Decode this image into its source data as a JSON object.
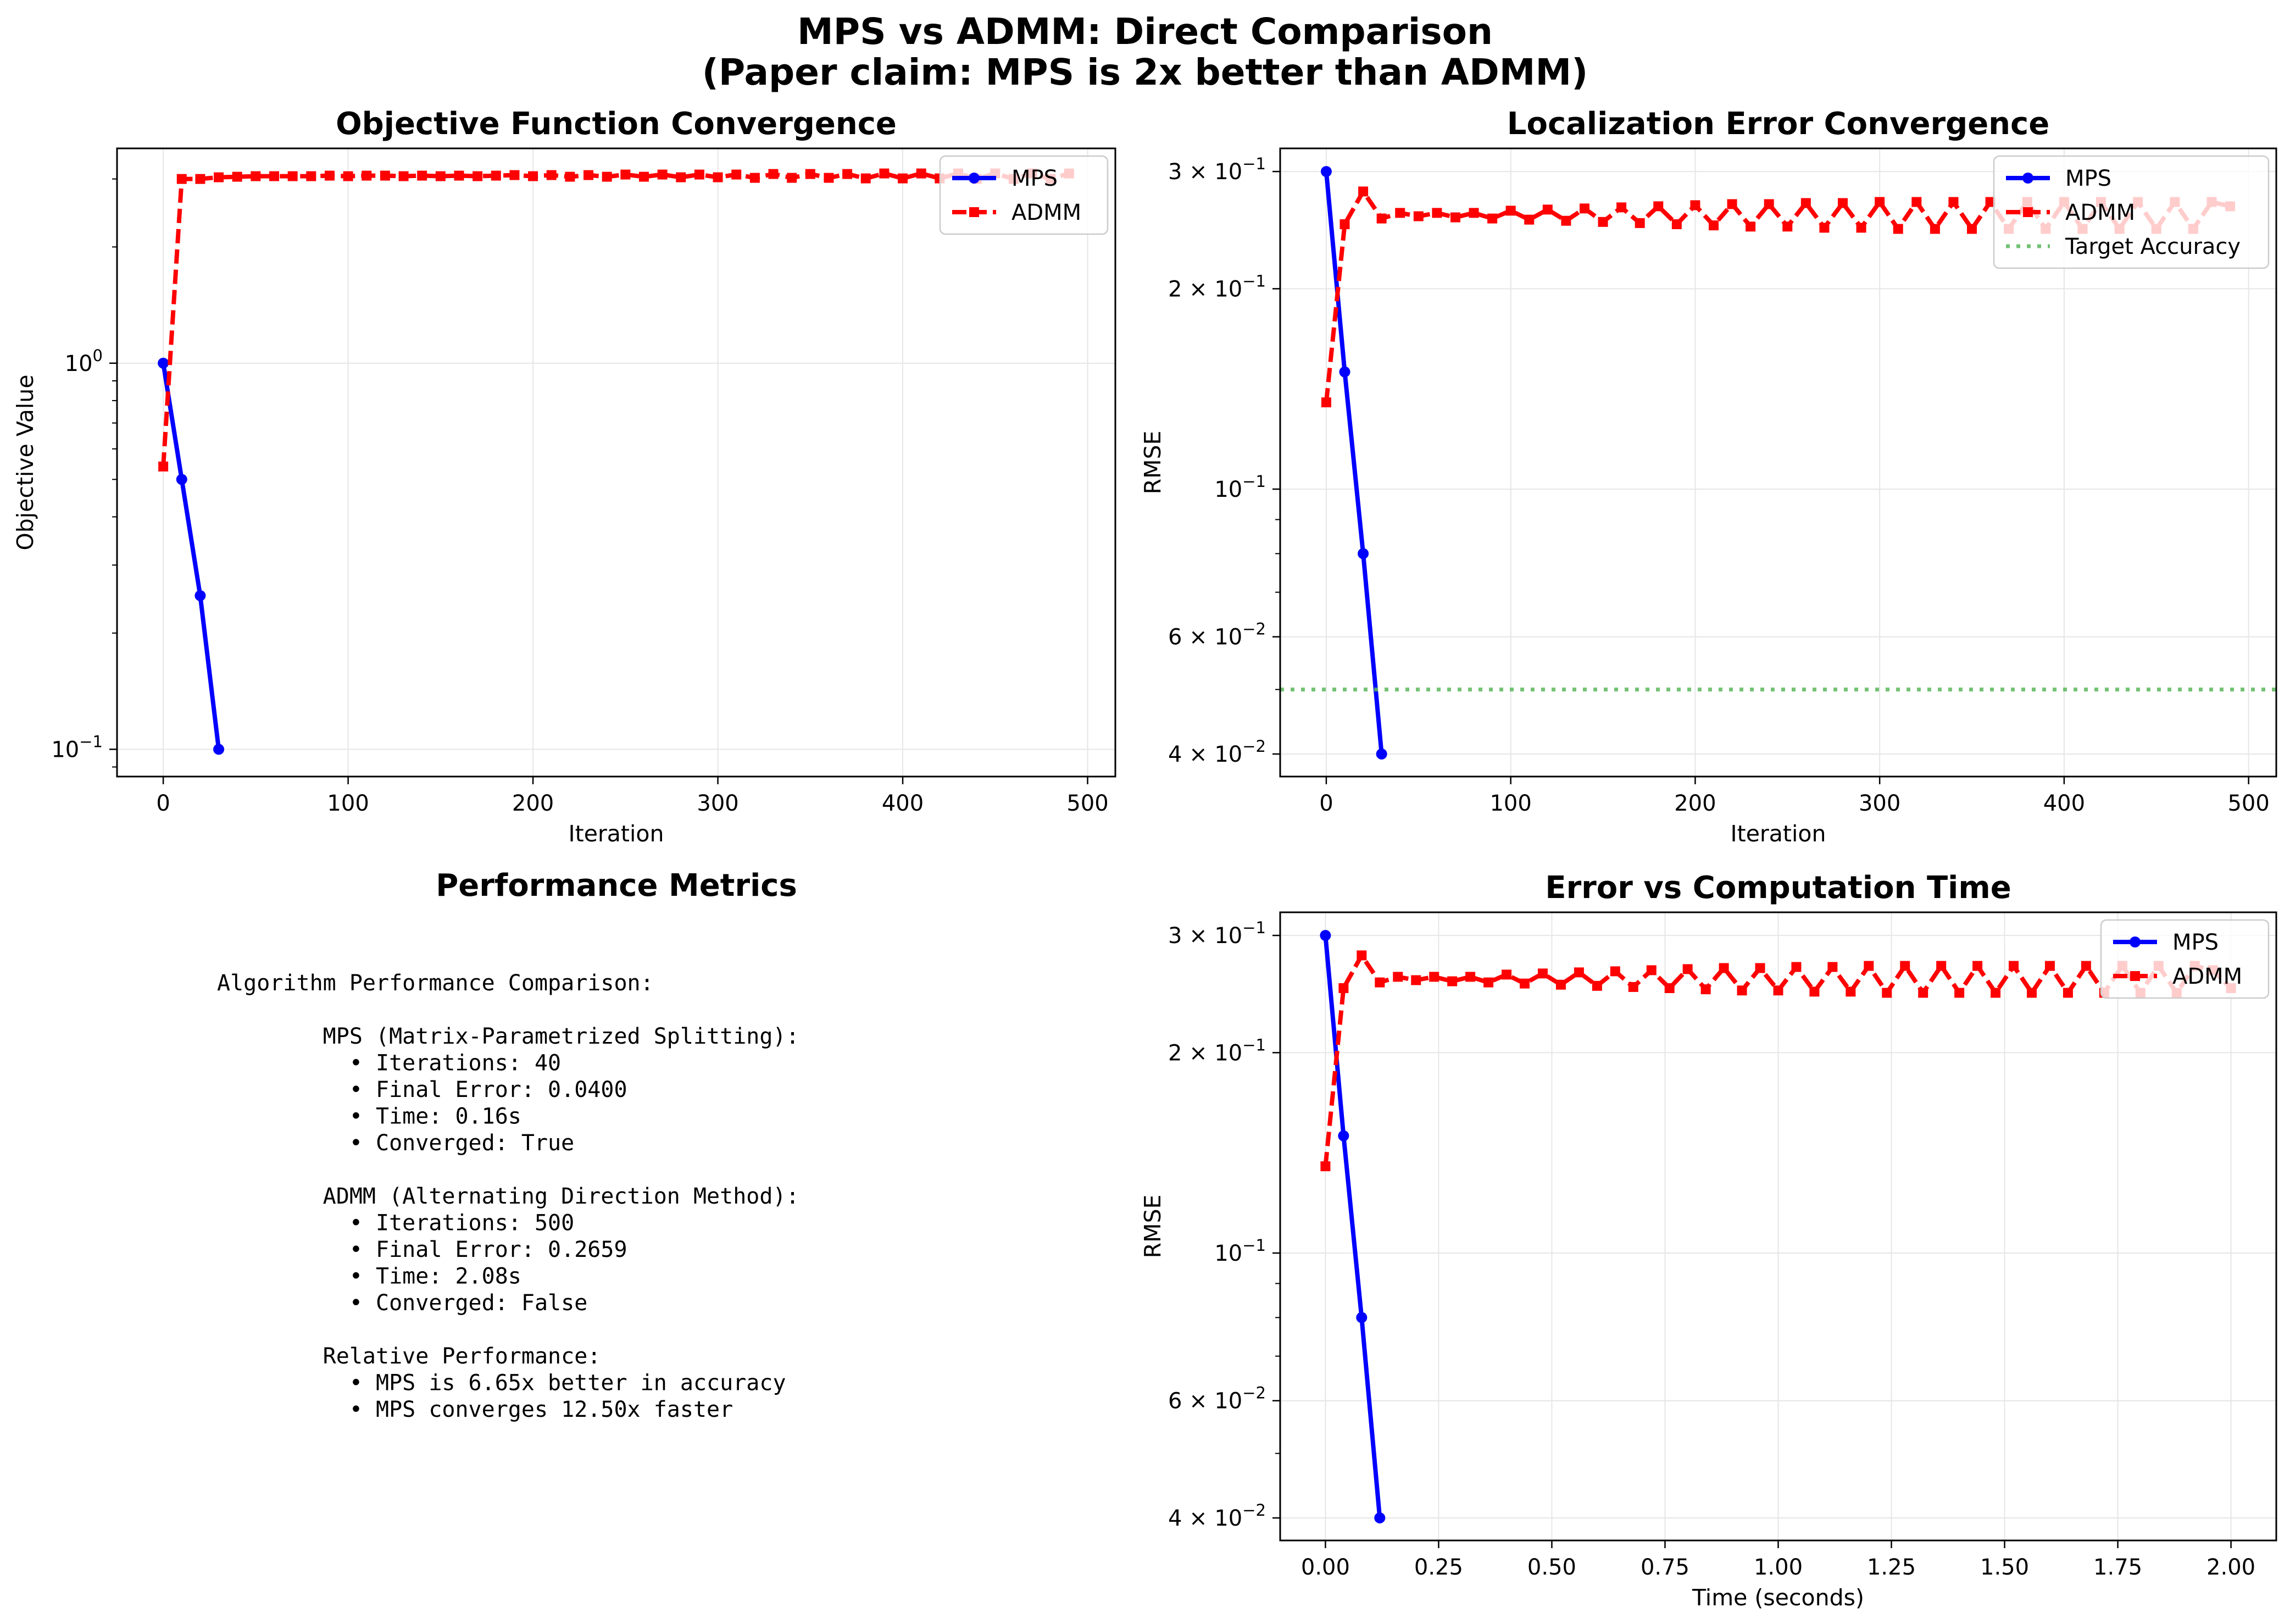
{
  "figure": {
    "suptitle_line1": "MPS vs ADMM: Direct Comparison",
    "suptitle_line2": "(Paper claim: MPS is 2x better than ADMM)"
  },
  "colors": {
    "mps": "#0000ff",
    "admm": "#ff0000",
    "target": "#5cb85c",
    "grid": "#e6e6e6"
  },
  "metrics_panel": {
    "title": "Performance Metrics",
    "lines": [
      "Algorithm Performance Comparison:",
      "",
      "        MPS (Matrix-Parametrized Splitting):",
      "          • Iterations: 40",
      "          • Final Error: 0.0400",
      "          • Time: 0.16s",
      "          • Converged: True",
      "",
      "        ADMM (Alternating Direction Method):",
      "          • Iterations: 500",
      "          • Final Error: 0.2659",
      "          • Time: 2.08s",
      "          • Converged: False",
      "",
      "        Relative Performance:",
      "          • MPS is 6.65x better in accuracy",
      "          • MPS converges 12.50x faster"
    ]
  },
  "chart_data": [
    {
      "type": "line",
      "title": "Objective Function Convergence",
      "xlabel": "Iteration",
      "ylabel": "Objective Value",
      "yscale": "log",
      "xlim": [
        -25,
        515
      ],
      "ylim": [
        0.085,
        3.6
      ],
      "grid": true,
      "legend": "top-right",
      "xticks": [
        0,
        100,
        200,
        300,
        400,
        500
      ],
      "xtick_labels": [
        "0",
        "100",
        "200",
        "300",
        "400",
        "500"
      ],
      "yticks": [
        0.1,
        1
      ],
      "ytick_labels": [
        [
          "10",
          "−1"
        ],
        [
          "10",
          "0"
        ]
      ],
      "series": [
        {
          "name": "MPS",
          "style": "mps",
          "x": [
            0,
            10,
            20,
            30
          ],
          "y": [
            1.0,
            0.5,
            0.25,
            0.1
          ]
        },
        {
          "name": "ADMM",
          "style": "admm",
          "x": [
            0,
            10,
            20,
            30,
            40,
            50,
            60,
            70,
            80,
            90,
            100,
            110,
            120,
            130,
            140,
            150,
            160,
            170,
            180,
            190,
            200,
            210,
            220,
            230,
            240,
            250,
            260,
            270,
            280,
            290,
            300,
            310,
            320,
            330,
            340,
            350,
            360,
            370,
            380,
            390,
            400,
            410,
            420,
            430,
            440,
            450,
            460,
            470,
            480,
            490
          ],
          "y": [
            0.54,
            3.0,
            3.0,
            3.03,
            3.04,
            3.05,
            3.05,
            3.05,
            3.05,
            3.06,
            3.05,
            3.06,
            3.06,
            3.05,
            3.06,
            3.05,
            3.06,
            3.05,
            3.06,
            3.07,
            3.05,
            3.07,
            3.04,
            3.07,
            3.04,
            3.08,
            3.04,
            3.08,
            3.03,
            3.08,
            3.03,
            3.08,
            3.02,
            3.09,
            3.02,
            3.09,
            3.02,
            3.09,
            3.01,
            3.1,
            3.01,
            3.1,
            3.01,
            3.1,
            3.0,
            3.1,
            3.0,
            3.1,
            3.0,
            3.1
          ]
        }
      ]
    },
    {
      "type": "line",
      "title": "Localization Error Convergence",
      "xlabel": "Iteration",
      "ylabel": "RMSE",
      "yscale": "log",
      "xlim": [
        -25,
        515
      ],
      "ylim": [
        0.037,
        0.325
      ],
      "grid": true,
      "legend": "top-right",
      "xticks": [
        0,
        100,
        200,
        300,
        400,
        500
      ],
      "xtick_labels": [
        "0",
        "100",
        "200",
        "300",
        "400",
        "500"
      ],
      "yticks": [
        0.04,
        0.06,
        0.1,
        0.2,
        0.3
      ],
      "ytick_labels": [
        [
          "4 × 10",
          "−2"
        ],
        [
          "6 × 10",
          "−2"
        ],
        [
          "10",
          "−1"
        ],
        [
          "2 × 10",
          "−1"
        ],
        [
          "3 × 10",
          "−1"
        ]
      ],
      "series": [
        {
          "name": "MPS",
          "style": "mps",
          "x": [
            0,
            10,
            20,
            30
          ],
          "y": [
            0.3,
            0.15,
            0.08,
            0.04
          ]
        },
        {
          "name": "ADMM",
          "style": "admm",
          "x": [
            0,
            10,
            20,
            30,
            40,
            50,
            60,
            70,
            80,
            90,
            100,
            110,
            120,
            130,
            140,
            150,
            160,
            170,
            180,
            190,
            200,
            210,
            220,
            230,
            240,
            250,
            260,
            270,
            280,
            290,
            300,
            310,
            320,
            330,
            340,
            350,
            360,
            370,
            380,
            390,
            400,
            410,
            420,
            430,
            440,
            450,
            460,
            470,
            480,
            490
          ],
          "y": [
            0.135,
            0.25,
            0.28,
            0.255,
            0.26,
            0.257,
            0.26,
            0.256,
            0.26,
            0.255,
            0.262,
            0.254,
            0.263,
            0.253,
            0.264,
            0.252,
            0.265,
            0.251,
            0.266,
            0.25,
            0.267,
            0.249,
            0.268,
            0.248,
            0.268,
            0.248,
            0.269,
            0.247,
            0.269,
            0.247,
            0.27,
            0.246,
            0.27,
            0.246,
            0.27,
            0.246,
            0.27,
            0.246,
            0.27,
            0.246,
            0.27,
            0.246,
            0.27,
            0.246,
            0.27,
            0.246,
            0.27,
            0.246,
            0.27,
            0.266
          ]
        },
        {
          "name": "Target Accuracy",
          "style": "target",
          "hline": 0.05
        }
      ]
    },
    {
      "type": "line",
      "title": "Error vs Computation Time",
      "xlabel": "Time (seconds)",
      "ylabel": "RMSE",
      "yscale": "log",
      "xlim": [
        -0.1,
        2.1
      ],
      "ylim": [
        0.037,
        0.325
      ],
      "grid": true,
      "legend": "top-right",
      "xticks": [
        0,
        0.25,
        0.5,
        0.75,
        1.0,
        1.25,
        1.5,
        1.75,
        2.0
      ],
      "xtick_labels": [
        "0.00",
        "0.25",
        "0.50",
        "0.75",
        "1.00",
        "1.25",
        "1.50",
        "1.75",
        "2.00"
      ],
      "yticks": [
        0.04,
        0.06,
        0.1,
        0.2,
        0.3
      ],
      "ytick_labels": [
        [
          "4 × 10",
          "−2"
        ],
        [
          "6 × 10",
          "−2"
        ],
        [
          "10",
          "−1"
        ],
        [
          "2 × 10",
          "−1"
        ],
        [
          "3 × 10",
          "−1"
        ]
      ],
      "series": [
        {
          "name": "MPS",
          "style": "mps",
          "x": [
            0,
            0.04,
            0.08,
            0.12
          ],
          "y": [
            0.3,
            0.15,
            0.08,
            0.04
          ]
        },
        {
          "name": "ADMM",
          "style": "admm",
          "x": [
            0,
            0.04,
            0.08,
            0.12,
            0.16,
            0.2,
            0.24,
            0.28,
            0.32,
            0.36,
            0.4,
            0.44,
            0.48,
            0.52,
            0.56,
            0.6,
            0.64,
            0.68,
            0.72,
            0.76,
            0.8,
            0.84,
            0.88,
            0.92,
            0.96,
            1.0,
            1.04,
            1.08,
            1.12,
            1.16,
            1.2,
            1.24,
            1.28,
            1.32,
            1.36,
            1.4,
            1.44,
            1.48,
            1.52,
            1.56,
            1.6,
            1.64,
            1.68,
            1.72,
            1.76,
            1.8,
            1.84,
            1.88,
            1.92,
            1.96,
            2.0
          ],
          "y": [
            0.135,
            0.25,
            0.28,
            0.255,
            0.26,
            0.257,
            0.26,
            0.256,
            0.26,
            0.255,
            0.262,
            0.254,
            0.263,
            0.253,
            0.264,
            0.252,
            0.265,
            0.251,
            0.266,
            0.25,
            0.267,
            0.249,
            0.268,
            0.248,
            0.268,
            0.248,
            0.269,
            0.247,
            0.269,
            0.247,
            0.27,
            0.246,
            0.27,
            0.246,
            0.27,
            0.246,
            0.27,
            0.246,
            0.27,
            0.246,
            0.27,
            0.246,
            0.27,
            0.246,
            0.27,
            0.246,
            0.27,
            0.246,
            0.27,
            0.266,
            0.25
          ]
        }
      ]
    }
  ]
}
